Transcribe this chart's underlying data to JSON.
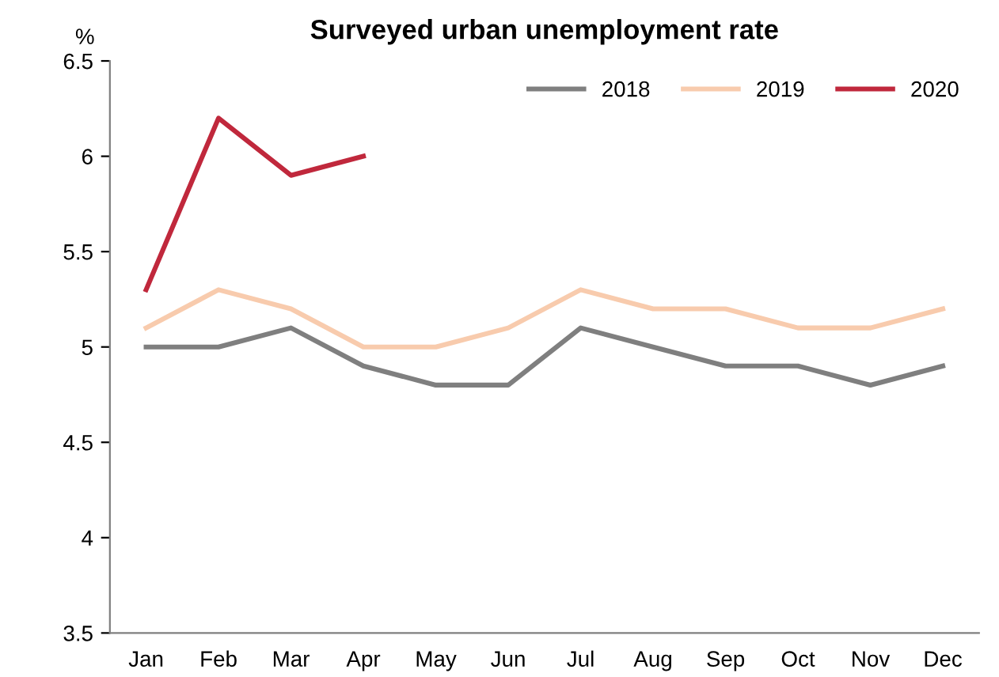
{
  "chart_data": {
    "type": "line",
    "title": "Surveyed urban unemployment rate",
    "ylabel": "%",
    "categories": [
      "Jan",
      "Feb",
      "Mar",
      "Apr",
      "May",
      "Jun",
      "Jul",
      "Aug",
      "Sep",
      "Oct",
      "Nov",
      "Dec"
    ],
    "series": [
      {
        "name": "2018",
        "color": "#7f7f7f",
        "values": [
          5.0,
          5.0,
          5.1,
          4.9,
          4.8,
          4.8,
          5.1,
          5.0,
          4.9,
          4.9,
          4.8,
          4.9
        ]
      },
      {
        "name": "2019",
        "color": "#f8cbad",
        "values": [
          5.1,
          5.3,
          5.2,
          5.0,
          5.0,
          5.1,
          5.3,
          5.2,
          5.2,
          5.1,
          5.1,
          5.2
        ]
      },
      {
        "name": "2020",
        "color": "#c0283c",
        "values": [
          5.3,
          6.2,
          5.9,
          6.0,
          null,
          null,
          null,
          null,
          null,
          null,
          null,
          null
        ]
      }
    ],
    "ylim": [
      3.5,
      6.5
    ],
    "yticks": [
      3.5,
      4,
      4.5,
      5,
      5.5,
      6,
      6.5
    ],
    "grid": false,
    "legend": "top right",
    "marker": "none",
    "line_style": "solid"
  }
}
